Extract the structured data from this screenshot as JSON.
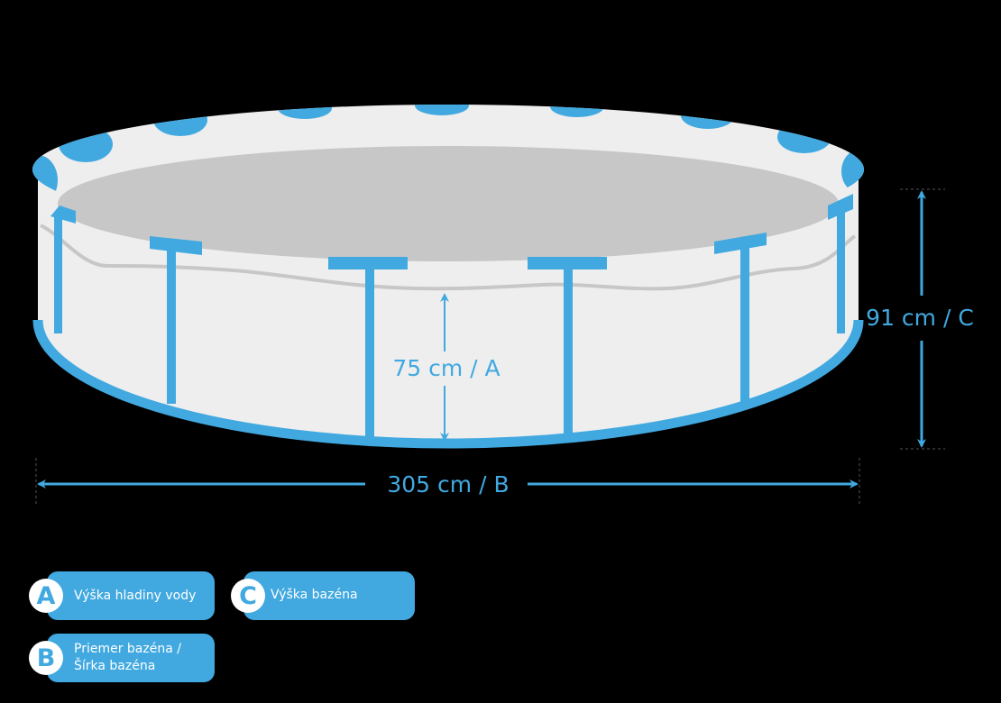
{
  "colors": {
    "accent": "#41a9e0",
    "pool_wall": "#eeeeee",
    "pool_floor": "#c8c7c8",
    "background": "#000000"
  },
  "dimensions": {
    "water_height": "75 cm / A",
    "pool_height": "91 cm / C",
    "diameter": "305 cm / B"
  },
  "legend": [
    {
      "letter": "A",
      "label": "Výška hladiny vody"
    },
    {
      "letter": "C",
      "label": "Výška bazéna"
    },
    {
      "letter": "B",
      "label": "Priemer bazéna / Šírka bazéna"
    }
  ]
}
